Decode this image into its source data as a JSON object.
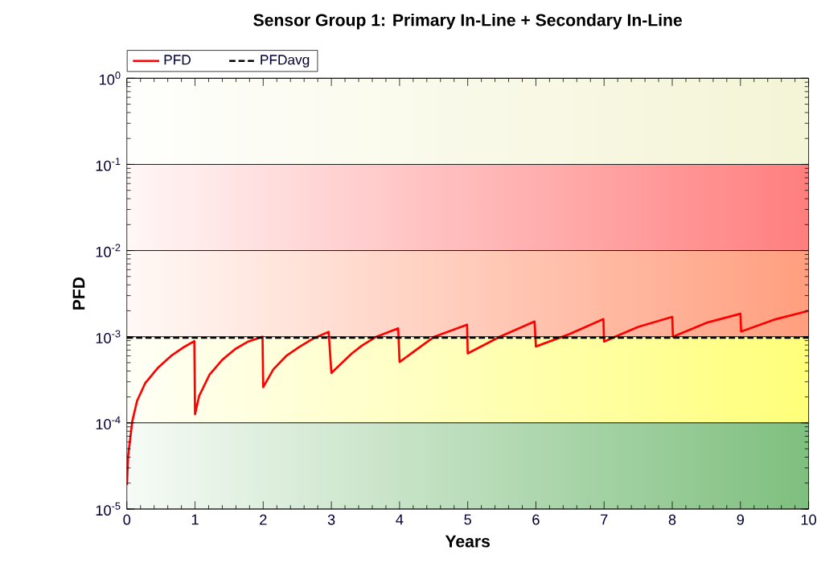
{
  "chart_data": {
    "type": "line",
    "title": "Sensor Group 1: Primary In-Line + Secondary In-Line",
    "xlabel": "Years",
    "ylabel": "PFD",
    "series": [
      {
        "name": "PFD",
        "color": "#ff0000",
        "line_style": "solid",
        "x": [
          0,
          0.02,
          0.08,
          0.15,
          0.27,
          0.46,
          0.65,
          0.84,
          0.99,
          1,
          1.06,
          1.21,
          1.4,
          1.59,
          1.78,
          1.99,
          2,
          2.15,
          2.34,
          2.53,
          2.72,
          2.96,
          3,
          3.3,
          3.45,
          3.66,
          3.98,
          4,
          4.51,
          4.99,
          5,
          5.47,
          5.98,
          6,
          6.49,
          6.99,
          7,
          7.5,
          8,
          8.01,
          8.5,
          9,
          9.01,
          9.52,
          10
        ],
        "values": [
          1.9e-05,
          4.2e-05,
          0.000105,
          0.00018,
          0.00029,
          0.00044,
          0.0006,
          0.00076,
          0.00089,
          0.000126,
          0.000205,
          0.00036,
          0.00054,
          0.00072,
          0.00088,
          0.001,
          0.00026,
          0.00042,
          0.0006,
          0.00076,
          0.00094,
          0.00114,
          0.00038,
          0.00064,
          0.00079,
          0.001,
          0.00125,
          0.00051,
          0.001,
          0.00138,
          0.00064,
          0.001,
          0.0015,
          0.00077,
          0.00107,
          0.0016,
          0.00088,
          0.0013,
          0.0017,
          0.001,
          0.00145,
          0.00185,
          0.00115,
          0.0016,
          0.002
        ]
      },
      {
        "name": "PFDavg",
        "color": "#000000",
        "line_style": "dashed",
        "x": [
          0,
          10
        ],
        "values": [
          0.00097,
          0.00097
        ]
      }
    ],
    "xlim": [
      0,
      10
    ],
    "ylim": [
      1e-05,
      1
    ],
    "log": "y",
    "xticks": [
      0,
      1,
      2,
      3,
      4,
      5,
      6,
      7,
      8,
      9,
      10
    ],
    "yticks": [
      {
        "value": 1e-05,
        "label": "10$^{-5}$"
      },
      {
        "value": 0.0001,
        "label": "10$^{-4}$"
      },
      {
        "value": 0.001,
        "label": "10$^{-3}$"
      },
      {
        "value": 0.01,
        "label": "10$^{-2}$"
      },
      {
        "value": 0.1,
        "label": "10$^{-1}$"
      },
      {
        "value": 1,
        "label": "10$^{0}$"
      }
    ],
    "bands": [
      {
        "axis": "y",
        "from": 1e-05,
        "to": 0.0001,
        "color": "#7fbf7f"
      },
      {
        "axis": "y",
        "from": 0.0001,
        "to": 0.001,
        "color": "#ffff7a"
      },
      {
        "axis": "y",
        "from": 0.001,
        "to": 0.01,
        "color": "#ff9f7f"
      },
      {
        "axis": "y",
        "from": 0.01,
        "to": 0.1,
        "color": "#ff7f7f"
      },
      {
        "axis": "y",
        "from": 0.1,
        "to": 1,
        "color": "#f4f4d6"
      }
    ],
    "grid": "y",
    "legend": "top left",
    "marker": "none"
  }
}
